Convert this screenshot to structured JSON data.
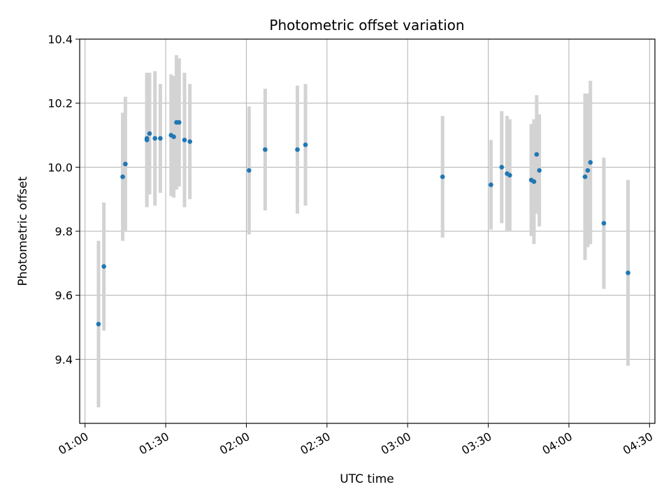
{
  "chart_data": {
    "type": "scatter",
    "title": "Photometric offset variation",
    "xlabel": "UTC time",
    "ylabel": "Photometric offset",
    "xlim": [
      "00:58",
      "04:32"
    ],
    "ylim": [
      9.2,
      10.4
    ],
    "x_ticks": [
      "01:00",
      "01:30",
      "02:00",
      "02:30",
      "03:00",
      "03:30",
      "04:00",
      "04:30"
    ],
    "y_ticks": [
      "9.4",
      "9.6",
      "9.8",
      "10.0",
      "10.2",
      "10.4"
    ],
    "grid": true,
    "marker_color": "#1f77b4",
    "errorbar_color": "#d3d3d3",
    "points": [
      {
        "t": "01:05",
        "y": 9.51,
        "err": 0.26
      },
      {
        "t": "01:07",
        "y": 9.69,
        "err": 0.2
      },
      {
        "t": "01:14",
        "y": 9.97,
        "err": 0.2
      },
      {
        "t": "01:15",
        "y": 10.01,
        "err": 0.21
      },
      {
        "t": "01:23",
        "y": 10.09,
        "err": 0.2
      },
      {
        "t": "01:23",
        "y": 10.085,
        "err": 0.21
      },
      {
        "t": "01:24",
        "y": 10.105,
        "err": 0.19
      },
      {
        "t": "01:26",
        "y": 10.09,
        "err": 0.21
      },
      {
        "t": "01:28",
        "y": 10.09,
        "err": 0.17
      },
      {
        "t": "01:32",
        "y": 10.1,
        "err": 0.19
      },
      {
        "t": "01:33",
        "y": 10.095,
        "err": 0.19
      },
      {
        "t": "01:34",
        "y": 10.14,
        "err": 0.21
      },
      {
        "t": "01:35",
        "y": 10.14,
        "err": 0.2
      },
      {
        "t": "01:37",
        "y": 10.085,
        "err": 0.21
      },
      {
        "t": "01:39",
        "y": 10.08,
        "err": 0.18
      },
      {
        "t": "02:01",
        "y": 9.99,
        "err": 0.2
      },
      {
        "t": "02:07",
        "y": 10.055,
        "err": 0.19
      },
      {
        "t": "02:19",
        "y": 10.055,
        "err": 0.2
      },
      {
        "t": "02:22",
        "y": 10.07,
        "err": 0.19
      },
      {
        "t": "03:13",
        "y": 9.97,
        "err": 0.19
      },
      {
        "t": "03:31",
        "y": 9.945,
        "err": 0.14
      },
      {
        "t": "03:35",
        "y": 10.0,
        "err": 0.175
      },
      {
        "t": "03:37",
        "y": 9.98,
        "err": 0.18
      },
      {
        "t": "03:38",
        "y": 9.975,
        "err": 0.175
      },
      {
        "t": "03:46",
        "y": 9.96,
        "err": 0.175
      },
      {
        "t": "03:47",
        "y": 9.955,
        "err": 0.195
      },
      {
        "t": "03:48",
        "y": 10.04,
        "err": 0.185
      },
      {
        "t": "03:49",
        "y": 9.99,
        "err": 0.175
      },
      {
        "t": "04:06",
        "y": 9.97,
        "err": 0.26
      },
      {
        "t": "04:07",
        "y": 9.99,
        "err": 0.24
      },
      {
        "t": "04:08",
        "y": 10.015,
        "err": 0.255
      },
      {
        "t": "04:13",
        "y": 9.825,
        "err": 0.205
      },
      {
        "t": "04:22",
        "y": 9.67,
        "err": 0.29
      }
    ]
  }
}
